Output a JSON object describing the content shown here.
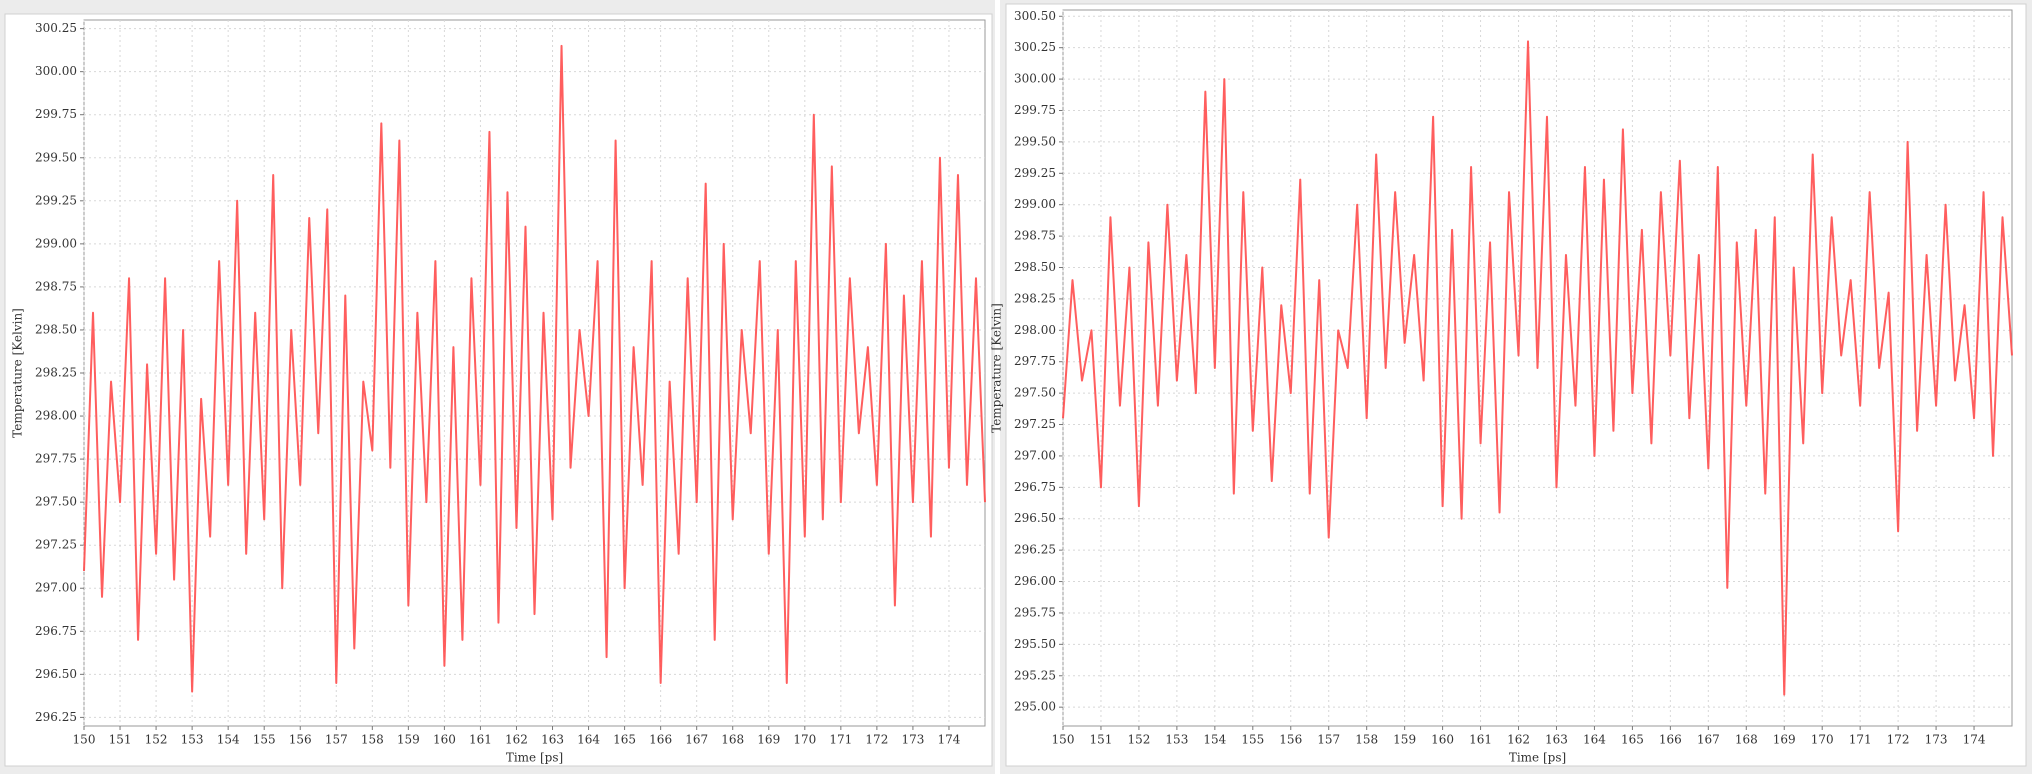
{
  "chart_data": [
    {
      "type": "line",
      "xlabel": "Time [ps]",
      "ylabel": "Temperature [Kelvin]",
      "color": "#ff4d4d",
      "grid": true,
      "xlim": [
        150,
        175
      ],
      "xticks": [
        150,
        151,
        152,
        153,
        154,
        155,
        156,
        157,
        158,
        159,
        160,
        161,
        162,
        163,
        164,
        165,
        166,
        167,
        168,
        169,
        170,
        171,
        172,
        173,
        174
      ],
      "ylim": [
        296.2,
        300.3
      ],
      "yticks": [
        296.25,
        {
          "value": 296.5,
          "label": "296.50"
        },
        296.75,
        {
          "value": 297,
          "label": "297.00"
        },
        297.25,
        {
          "value": 297.5,
          "label": "297.50"
        },
        297.75,
        {
          "value": 298,
          "label": "298.00"
        },
        298.25,
        {
          "value": 298.5,
          "label": "298.50"
        },
        298.75,
        {
          "value": 299,
          "label": "299.00"
        },
        299.25,
        {
          "value": 299.5,
          "label": "299.50"
        },
        299.75,
        {
          "value": 300,
          "label": "300.00"
        },
        300.25
      ],
      "x": [
        150,
        150.25,
        150.5,
        150.75,
        151,
        151.25,
        151.5,
        151.75,
        152,
        152.25,
        152.5,
        152.75,
        153,
        153.25,
        153.5,
        153.75,
        154,
        154.25,
        154.5,
        154.75,
        155,
        155.25,
        155.5,
        155.75,
        156,
        156.25,
        156.5,
        156.75,
        157,
        157.25,
        157.5,
        157.75,
        158,
        158.25,
        158.5,
        158.75,
        159,
        159.25,
        159.5,
        159.75,
        160,
        160.25,
        160.5,
        160.75,
        161,
        161.25,
        161.5,
        161.75,
        162,
        162.25,
        162.5,
        162.75,
        163,
        163.25,
        163.5,
        163.75,
        164,
        164.25,
        164.5,
        164.75,
        165,
        165.25,
        165.5,
        165.75,
        166,
        166.25,
        166.5,
        166.75,
        167,
        167.25,
        167.5,
        167.75,
        168,
        168.25,
        168.5,
        168.75,
        169,
        169.25,
        169.5,
        169.75,
        170,
        170.25,
        170.5,
        170.75,
        171,
        171.25,
        171.5,
        171.75,
        172,
        172.25,
        172.5,
        172.75,
        173,
        173.25,
        173.5,
        173.75,
        174,
        174.25,
        174.5,
        174.75,
        175
      ],
      "values": [
        297.1,
        298.6,
        296.95,
        298.2,
        297.5,
        298.8,
        296.7,
        298.3,
        297.2,
        298.8,
        297.05,
        298.5,
        296.4,
        298.1,
        297.3,
        298.9,
        297.6,
        299.25,
        297.2,
        298.6,
        297.4,
        299.4,
        297.0,
        298.5,
        297.6,
        299.15,
        297.9,
        299.2,
        296.45,
        298.7,
        296.65,
        298.2,
        297.8,
        299.7,
        297.7,
        299.6,
        296.9,
        298.6,
        297.5,
        298.9,
        296.55,
        298.4,
        296.7,
        298.8,
        297.6,
        299.65,
        296.8,
        299.3,
        297.35,
        299.1,
        296.85,
        298.6,
        297.4,
        300.15,
        297.7,
        298.5,
        298.0,
        298.9,
        296.6,
        299.6,
        297.0,
        298.4,
        297.6,
        298.9,
        296.45,
        298.2,
        297.2,
        298.8,
        297.5,
        299.35,
        296.7,
        299.0,
        297.4,
        298.5,
        297.9,
        298.9,
        297.2,
        298.5,
        296.45,
        298.9,
        297.3,
        299.75,
        297.4,
        299.45,
        297.5,
        298.8,
        297.9,
        298.4,
        297.6,
        299.0,
        296.9,
        298.7,
        297.5,
        298.9,
        297.3,
        299.5,
        297.7,
        299.4,
        297.6,
        298.8,
        297.5
      ]
    },
    {
      "type": "line",
      "xlabel": "Time [ps]",
      "ylabel": "Temperature [Kelvin]",
      "color": "#ff4d4d",
      "grid": true,
      "xlim": [
        150,
        175
      ],
      "xticks": [
        150,
        151,
        152,
        153,
        154,
        155,
        156,
        157,
        158,
        159,
        160,
        161,
        162,
        163,
        164,
        165,
        166,
        167,
        168,
        169,
        170,
        171,
        172,
        173,
        174
      ],
      "ylim": [
        294.85,
        300.55
      ],
      "yticks": [
        {
          "value": 295,
          "label": "295.00"
        },
        295.25,
        {
          "value": 295.5,
          "label": "295.50"
        },
        295.75,
        {
          "value": 296,
          "label": "296.00"
        },
        296.25,
        {
          "value": 296.5,
          "label": "296.50"
        },
        296.75,
        {
          "value": 297,
          "label": "297.00"
        },
        297.25,
        {
          "value": 297.5,
          "label": "297.50"
        },
        297.75,
        {
          "value": 298,
          "label": "298.00"
        },
        298.25,
        {
          "value": 298.5,
          "label": "298.50"
        },
        298.75,
        {
          "value": 299,
          "label": "299.00"
        },
        299.25,
        {
          "value": 299.5,
          "label": "299.50"
        },
        299.75,
        {
          "value": 300,
          "label": "300.00"
        },
        300.25,
        {
          "value": 300.5,
          "label": "300.50"
        }
      ],
      "x": [
        150,
        150.25,
        150.5,
        150.75,
        151,
        151.25,
        151.5,
        151.75,
        152,
        152.25,
        152.5,
        152.75,
        153,
        153.25,
        153.5,
        153.75,
        154,
        154.25,
        154.5,
        154.75,
        155,
        155.25,
        155.5,
        155.75,
        156,
        156.25,
        156.5,
        156.75,
        157,
        157.25,
        157.5,
        157.75,
        158,
        158.25,
        158.5,
        158.75,
        159,
        159.25,
        159.5,
        159.75,
        160,
        160.25,
        160.5,
        160.75,
        161,
        161.25,
        161.5,
        161.75,
        162,
        162.25,
        162.5,
        162.75,
        163,
        163.25,
        163.5,
        163.75,
        164,
        164.25,
        164.5,
        164.75,
        165,
        165.25,
        165.5,
        165.75,
        166,
        166.25,
        166.5,
        166.75,
        167,
        167.25,
        167.5,
        167.75,
        168,
        168.25,
        168.5,
        168.75,
        169,
        169.25,
        169.5,
        169.75,
        170,
        170.25,
        170.5,
        170.75,
        171,
        171.25,
        171.5,
        171.75,
        172,
        172.25,
        172.5,
        172.75,
        173,
        173.25,
        173.5,
        173.75,
        174,
        174.25,
        174.5,
        174.75,
        175
      ],
      "values": [
        297.3,
        298.4,
        297.6,
        298.0,
        296.75,
        298.9,
        297.4,
        298.5,
        296.6,
        298.7,
        297.4,
        299.0,
        297.6,
        298.6,
        297.5,
        299.9,
        297.7,
        300.0,
        296.7,
        299.1,
        297.2,
        298.5,
        296.8,
        298.2,
        297.5,
        299.2,
        296.7,
        298.4,
        296.35,
        298.0,
        297.7,
        299.0,
        297.3,
        299.4,
        297.7,
        299.1,
        297.9,
        298.6,
        297.6,
        299.7,
        296.6,
        298.8,
        296.5,
        299.3,
        297.1,
        298.7,
        296.55,
        299.1,
        297.8,
        300.3,
        297.7,
        299.7,
        296.75,
        298.6,
        297.4,
        299.3,
        297.0,
        299.2,
        297.2,
        299.6,
        297.5,
        298.8,
        297.1,
        299.1,
        297.8,
        299.35,
        297.3,
        298.6,
        296.9,
        299.3,
        295.95,
        298.7,
        297.4,
        298.8,
        296.7,
        298.9,
        295.1,
        298.5,
        297.1,
        299.4,
        297.5,
        298.9,
        297.8,
        298.4,
        297.4,
        299.1,
        297.7,
        298.3,
        296.4,
        299.5,
        297.2,
        298.6,
        297.4,
        299.0,
        297.6,
        298.2,
        297.3,
        299.1,
        297.0,
        298.9,
        297.8
      ]
    }
  ]
}
